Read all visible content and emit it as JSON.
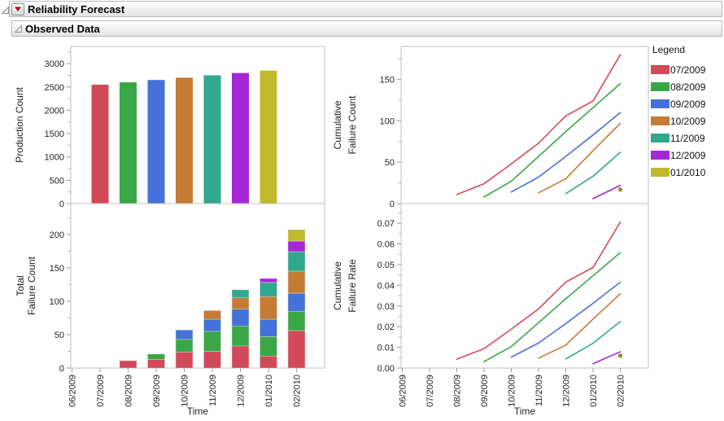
{
  "header": {
    "title": "Reliability Forecast"
  },
  "section": {
    "title": "Observed Data"
  },
  "time_axis": {
    "label": "Time",
    "ticks": [
      "06/2009",
      "07/2009",
      "08/2009",
      "09/2009",
      "10/2009",
      "11/2009",
      "12/2009",
      "01/2010",
      "02/2010"
    ]
  },
  "legend": {
    "title": "Legend",
    "items": [
      {
        "label": "07/2009",
        "color": "#d2495a"
      },
      {
        "label": "08/2009",
        "color": "#3aa747"
      },
      {
        "label": "09/2009",
        "color": "#4472d8"
      },
      {
        "label": "10/2009",
        "color": "#c67b34"
      },
      {
        "label": "11/2009",
        "color": "#2fa88e"
      },
      {
        "label": "12/2009",
        "color": "#a528d8"
      },
      {
        "label": "01/2010",
        "color": "#bfb92e"
      }
    ]
  },
  "chart_data": [
    {
      "id": "production-count",
      "type": "bar",
      "ylabel_lines": [
        "Production Count"
      ],
      "ylim": [
        0,
        3370
      ],
      "ytick_major": 500,
      "decimals": 0,
      "bars": [
        {
          "month": "07/2009",
          "value": 2550,
          "color": "#d2495a"
        },
        {
          "month": "08/2009",
          "value": 2600,
          "color": "#3aa747"
        },
        {
          "month": "09/2009",
          "value": 2650,
          "color": "#4472d8"
        },
        {
          "month": "10/2009",
          "value": 2700,
          "color": "#c67b34"
        },
        {
          "month": "11/2009",
          "value": 2750,
          "color": "#2fa88e"
        },
        {
          "month": "12/2009",
          "value": 2800,
          "color": "#a528d8"
        },
        {
          "month": "01/2010",
          "value": 2850,
          "color": "#bfb92e"
        }
      ]
    },
    {
      "id": "total-failure-count",
      "type": "stacked-bar",
      "ylabel_lines": [
        "Total",
        "Failure Count"
      ],
      "ylim": [
        0,
        246
      ],
      "ytick_major": 50,
      "decimals": 0,
      "stacks": [
        {
          "month": "08/2009",
          "segments": [
            {
              "cohort": "07/2009",
              "value": 11,
              "color": "#d2495a"
            }
          ]
        },
        {
          "month": "09/2009",
          "segments": [
            {
              "cohort": "07/2009",
              "value": 13,
              "color": "#d2495a"
            },
            {
              "cohort": "08/2009",
              "value": 8,
              "color": "#3aa747"
            }
          ]
        },
        {
          "month": "10/2009",
          "segments": [
            {
              "cohort": "07/2009",
              "value": 24,
              "color": "#d2495a"
            },
            {
              "cohort": "08/2009",
              "value": 19,
              "color": "#3aa747"
            },
            {
              "cohort": "09/2009",
              "value": 14,
              "color": "#4472d8"
            }
          ]
        },
        {
          "month": "11/2009",
          "segments": [
            {
              "cohort": "07/2009",
              "value": 25,
              "color": "#d2495a"
            },
            {
              "cohort": "08/2009",
              "value": 30,
              "color": "#3aa747"
            },
            {
              "cohort": "09/2009",
              "value": 18,
              "color": "#4472d8"
            },
            {
              "cohort": "10/2009",
              "value": 13,
              "color": "#c67b34"
            }
          ]
        },
        {
          "month": "12/2009",
          "segments": [
            {
              "cohort": "07/2009",
              "value": 33,
              "color": "#d2495a"
            },
            {
              "cohort": "08/2009",
              "value": 30,
              "color": "#3aa747"
            },
            {
              "cohort": "09/2009",
              "value": 25,
              "color": "#4472d8"
            },
            {
              "cohort": "10/2009",
              "value": 17,
              "color": "#c67b34"
            },
            {
              "cohort": "11/2009",
              "value": 12,
              "color": "#2fa88e"
            }
          ]
        },
        {
          "month": "01/2010",
          "segments": [
            {
              "cohort": "07/2009",
              "value": 18,
              "color": "#d2495a"
            },
            {
              "cohort": "08/2009",
              "value": 29,
              "color": "#3aa747"
            },
            {
              "cohort": "09/2009",
              "value": 26,
              "color": "#4472d8"
            },
            {
              "cohort": "10/2009",
              "value": 34,
              "color": "#c67b34"
            },
            {
              "cohort": "11/2009",
              "value": 21,
              "color": "#2fa88e"
            },
            {
              "cohort": "12/2009",
              "value": 6,
              "color": "#a528d8"
            }
          ]
        },
        {
          "month": "02/2010",
          "segments": [
            {
              "cohort": "07/2009",
              "value": 56,
              "color": "#d2495a"
            },
            {
              "cohort": "08/2009",
              "value": 29,
              "color": "#3aa747"
            },
            {
              "cohort": "09/2009",
              "value": 27,
              "color": "#4472d8"
            },
            {
              "cohort": "10/2009",
              "value": 33,
              "color": "#c67b34"
            },
            {
              "cohort": "11/2009",
              "value": 29,
              "color": "#2fa88e"
            },
            {
              "cohort": "12/2009",
              "value": 16,
              "color": "#a528d8"
            },
            {
              "cohort": "01/2010",
              "value": 17,
              "color": "#bfb92e"
            }
          ]
        }
      ]
    },
    {
      "id": "cumulative-failure-count",
      "type": "line",
      "ylabel_lines": [
        "Cumulative",
        "Failure Count"
      ],
      "ylim": [
        0,
        190
      ],
      "ytick_major": 50,
      "decimals": 0,
      "series": [
        {
          "name": "07/2009",
          "color": "#d2495a",
          "start_month": "08/2009",
          "values": [
            11,
            24,
            48,
            73,
            106,
            124,
            180
          ]
        },
        {
          "name": "08/2009",
          "color": "#3aa747",
          "start_month": "09/2009",
          "values": [
            8,
            27,
            57,
            87,
            116,
            145
          ]
        },
        {
          "name": "09/2009",
          "color": "#4472d8",
          "start_month": "10/2009",
          "values": [
            14,
            32,
            57,
            83,
            110
          ]
        },
        {
          "name": "10/2009",
          "color": "#c67b34",
          "start_month": "11/2009",
          "values": [
            13,
            30,
            64,
            97
          ]
        },
        {
          "name": "11/2009",
          "color": "#2fa88e",
          "start_month": "12/2009",
          "values": [
            12,
            33,
            62
          ]
        },
        {
          "name": "12/2009",
          "color": "#a528d8",
          "start_month": "01/2010",
          "values": [
            6,
            22
          ]
        },
        {
          "name": "01/2010",
          "color": "#8f8d25",
          "start_month": "02/2010",
          "values": [
            17
          ]
        }
      ]
    },
    {
      "id": "cumulative-failure-rate",
      "type": "line",
      "ylabel_lines": [
        "Cumulative",
        "Failure Rate"
      ],
      "ylim": [
        0,
        0.0795
      ],
      "ytick_major": 0.01,
      "decimals": 2,
      "series": [
        {
          "name": "07/2009",
          "color": "#d2495a",
          "start_month": "08/2009",
          "values": [
            0.0043,
            0.0094,
            0.0188,
            0.0286,
            0.0416,
            0.0486,
            0.0706
          ]
        },
        {
          "name": "08/2009",
          "color": "#3aa747",
          "start_month": "09/2009",
          "values": [
            0.0031,
            0.0104,
            0.0219,
            0.0335,
            0.0446,
            0.0558
          ]
        },
        {
          "name": "09/2009",
          "color": "#4472d8",
          "start_month": "10/2009",
          "values": [
            0.0053,
            0.0121,
            0.0215,
            0.0313,
            0.0415
          ]
        },
        {
          "name": "10/2009",
          "color": "#c67b34",
          "start_month": "11/2009",
          "values": [
            0.0048,
            0.0111,
            0.0237,
            0.0359
          ]
        },
        {
          "name": "11/2009",
          "color": "#2fa88e",
          "start_month": "12/2009",
          "values": [
            0.0044,
            0.012,
            0.0225
          ]
        },
        {
          "name": "12/2009",
          "color": "#a528d8",
          "start_month": "01/2010",
          "values": [
            0.0021,
            0.0079
          ]
        },
        {
          "name": "01/2010",
          "color": "#8f8d25",
          "start_month": "02/2010",
          "values": [
            0.006
          ]
        }
      ]
    }
  ]
}
